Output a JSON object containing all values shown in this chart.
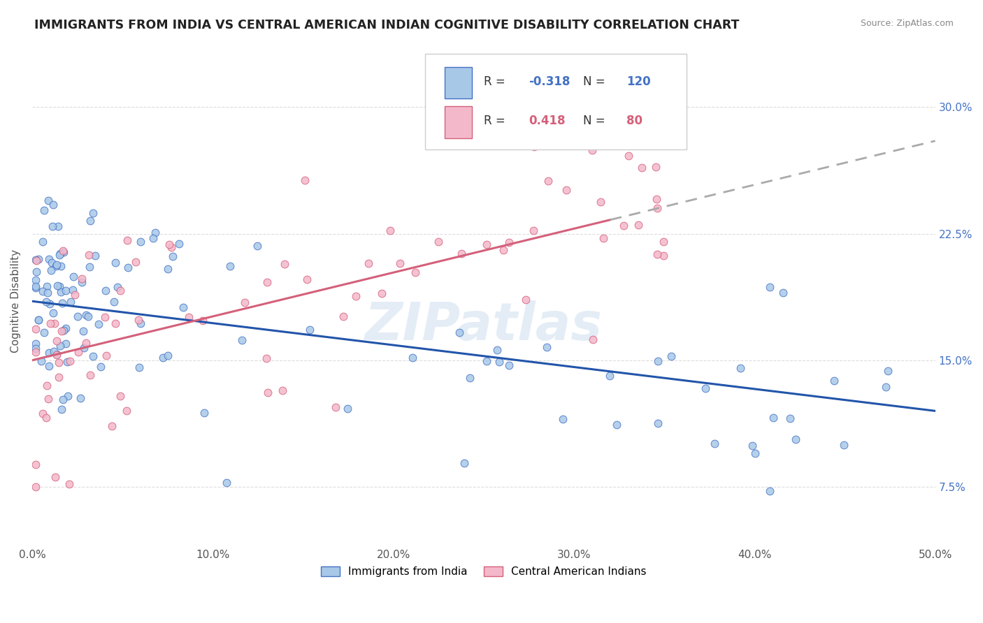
{
  "title": "IMMIGRANTS FROM INDIA VS CENTRAL AMERICAN INDIAN COGNITIVE DISABILITY CORRELATION CHART",
  "source": "Source: ZipAtlas.com",
  "ylabel": "Cognitive Disability",
  "series1_color": "#a8c8e8",
  "series1_edge_color": "#4472c4",
  "series2_color": "#f4b8cb",
  "series2_edge_color": "#d4607a",
  "series1_line_color": "#2255aa",
  "series2_line_color": "#d4607a",
  "series2_dash_color": "#aaaaaa",
  "legend_r1": "-0.318",
  "legend_n1": "120",
  "legend_r2": "0.418",
  "legend_n2": "80",
  "legend_label1": "Immigrants from India",
  "legend_label2": "Central American Indians",
  "watermark": "ZIPatlas",
  "xlim": [
    0.0,
    0.5
  ],
  "ylim": [
    0.04,
    0.33
  ],
  "ytick_vals": [
    0.075,
    0.15,
    0.225,
    0.3
  ],
  "ytick_labels": [
    "7.5%",
    "15.0%",
    "22.5%",
    "30.0%"
  ],
  "xtick_vals": [
    0.0,
    0.1,
    0.2,
    0.3,
    0.4,
    0.5
  ],
  "xtick_labels": [
    "0.0%",
    "10.0%",
    "20.0%",
    "30.0%",
    "40.0%",
    "50.0%"
  ],
  "trend1_x0": 0.0,
  "trend1_y0": 0.185,
  "trend1_x1": 0.5,
  "trend1_y1": 0.12,
  "trend2_x0": 0.0,
  "trend2_y0": 0.15,
  "trend2_x1": 0.5,
  "trend2_y1": 0.28,
  "trend2_solid_end": 0.32,
  "background_color": "#ffffff",
  "grid_color": "#dddddd",
  "title_color": "#222222",
  "source_color": "#888888",
  "ylabel_color": "#555555",
  "ytick_color": "#4472c4",
  "xtick_color": "#555555"
}
